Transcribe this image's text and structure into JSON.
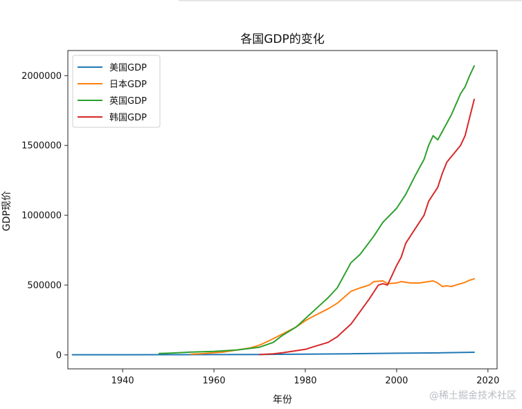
{
  "chart_data": {
    "type": "line",
    "title": "各国GDP的变化",
    "xlabel": "年份",
    "ylabel": "GDP现价",
    "xlim": [
      1928,
      2022
    ],
    "ylim": [
      -100000,
      2180000
    ],
    "xticks": [
      1940,
      1960,
      1980,
      2000,
      2020
    ],
    "xtick_labels": [
      "1940",
      "1960",
      "1980",
      "2000",
      "2020"
    ],
    "yticks": [
      0,
      500000,
      1000000,
      1500000,
      2000000
    ],
    "ytick_labels": [
      "0",
      "500000",
      "1000000",
      "1500000",
      "2000000"
    ],
    "legend_position": "top-left",
    "grid": false,
    "series": [
      {
        "name": "美国GDP",
        "color": "#1f77b4",
        "x": [
          1929,
          1940,
          1950,
          1960,
          1970,
          1980,
          1990,
          2000,
          2010,
          2017
        ],
        "y": [
          1000,
          1000,
          1500,
          2000,
          3000,
          5000,
          8000,
          12000,
          15000,
          19000
        ]
      },
      {
        "name": "日本GDP",
        "color": "#ff7f0e",
        "x": [
          1955,
          1957,
          1960,
          1962,
          1965,
          1968,
          1970,
          1972,
          1975,
          1978,
          1980,
          1982,
          1985,
          1987,
          1990,
          1992,
          1994,
          1995,
          1997,
          1998,
          2000,
          2001,
          2003,
          2005,
          2007,
          2008,
          2009,
          2010,
          2011,
          2012,
          2013,
          2015,
          2016,
          2017
        ],
        "y": [
          5000,
          8000,
          15000,
          20000,
          35000,
          50000,
          70000,
          100000,
          150000,
          200000,
          245000,
          280000,
          330000,
          370000,
          455000,
          480000,
          500000,
          525000,
          530000,
          510000,
          515000,
          525000,
          515000,
          515000,
          525000,
          530000,
          515000,
          490000,
          495000,
          490000,
          500000,
          520000,
          535000,
          545000
        ]
      },
      {
        "name": "英国GDP",
        "color": "#2ca02c",
        "x": [
          1948,
          1950,
          1955,
          1960,
          1965,
          1970,
          1973,
          1975,
          1978,
          1980,
          1983,
          1985,
          1987,
          1989,
          1990,
          1992,
          1995,
          1997,
          2000,
          2002,
          2004,
          2006,
          2007,
          2008,
          2009,
          2010,
          2012,
          2014,
          2015,
          2016,
          2017
        ],
        "y": [
          10000,
          12000,
          20000,
          25000,
          35000,
          55000,
          90000,
          140000,
          200000,
          260000,
          350000,
          410000,
          480000,
          600000,
          660000,
          720000,
          850000,
          950000,
          1050000,
          1150000,
          1280000,
          1400000,
          1500000,
          1570000,
          1540000,
          1600000,
          1720000,
          1870000,
          1920000,
          2000000,
          2070000
        ]
      },
      {
        "name": "韩国GDP",
        "color": "#d62728",
        "x": [
          1970,
          1973,
          1975,
          1978,
          1980,
          1982,
          1985,
          1987,
          1988,
          1990,
          1992,
          1994,
          1995,
          1996,
          1997,
          1998,
          2000,
          2001,
          2002,
          2004,
          2005,
          2006,
          2007,
          2008,
          2009,
          2010,
          2011,
          2012,
          2014,
          2015,
          2016,
          2017
        ],
        "y": [
          2000,
          8000,
          15000,
          30000,
          40000,
          60000,
          90000,
          130000,
          160000,
          220000,
          310000,
          400000,
          450000,
          500000,
          510000,
          500000,
          640000,
          700000,
          800000,
          900000,
          950000,
          1000000,
          1100000,
          1150000,
          1200000,
          1300000,
          1380000,
          1420000,
          1500000,
          1570000,
          1700000,
          1830000
        ]
      }
    ]
  },
  "watermark": "@稀土掘金技术社区"
}
